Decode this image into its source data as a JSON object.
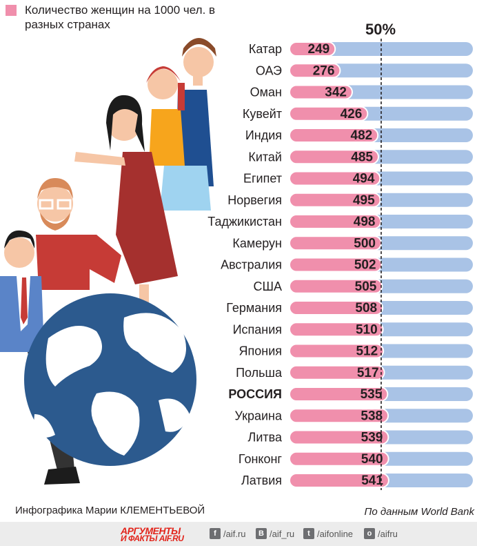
{
  "legend": {
    "text": "Количество женщин на 1000 чел. в разных странах",
    "color": "#f08fac"
  },
  "reference_label": "50%",
  "credits": {
    "author": "Инфографика Марии КЛЕМЕНТЬЕВОЙ",
    "source": "По данным World Bank"
  },
  "footer": {
    "brand_line1": "АРГУМЕНТЫ",
    "brand_line2": "И ФАКТЫ AIF.RU",
    "social": [
      {
        "icon": "facebook-icon",
        "glyph": "f",
        "text": "/aif.ru"
      },
      {
        "icon": "vk-icon",
        "glyph": "B",
        "text": "/aif_ru"
      },
      {
        "icon": "twitter-icon",
        "glyph": "t",
        "text": "/aifonline"
      },
      {
        "icon": "odnoklassniki-icon",
        "glyph": "o",
        "text": "/aifru"
      }
    ]
  },
  "colors": {
    "bar_pink": "#f08fac",
    "bar_blue": "#a9c3e6",
    "globe_ocean": "#2c5a8e",
    "globe_land": "#ffffff"
  },
  "chart_data": {
    "type": "bar",
    "orientation": "horizontal",
    "categories": [
      "Катар",
      "ОАЭ",
      "Оман",
      "Кувейт",
      "Индия",
      "Китай",
      "Египет",
      "Норвегия",
      "Таджикистан",
      "Камерун",
      "Австралия",
      "США",
      "Германия",
      "Испания",
      "Япония",
      "Польша",
      "РОССИЯ",
      "Украина",
      "Литва",
      "Гонконг",
      "Латвия"
    ],
    "values": [
      249,
      276,
      342,
      426,
      482,
      485,
      494,
      495,
      498,
      500,
      502,
      505,
      508,
      510,
      512,
      517,
      535,
      538,
      539,
      540,
      541
    ],
    "highlight": "РОССИЯ",
    "xlim": [
      0,
      1000
    ],
    "reference_line": 500
  }
}
